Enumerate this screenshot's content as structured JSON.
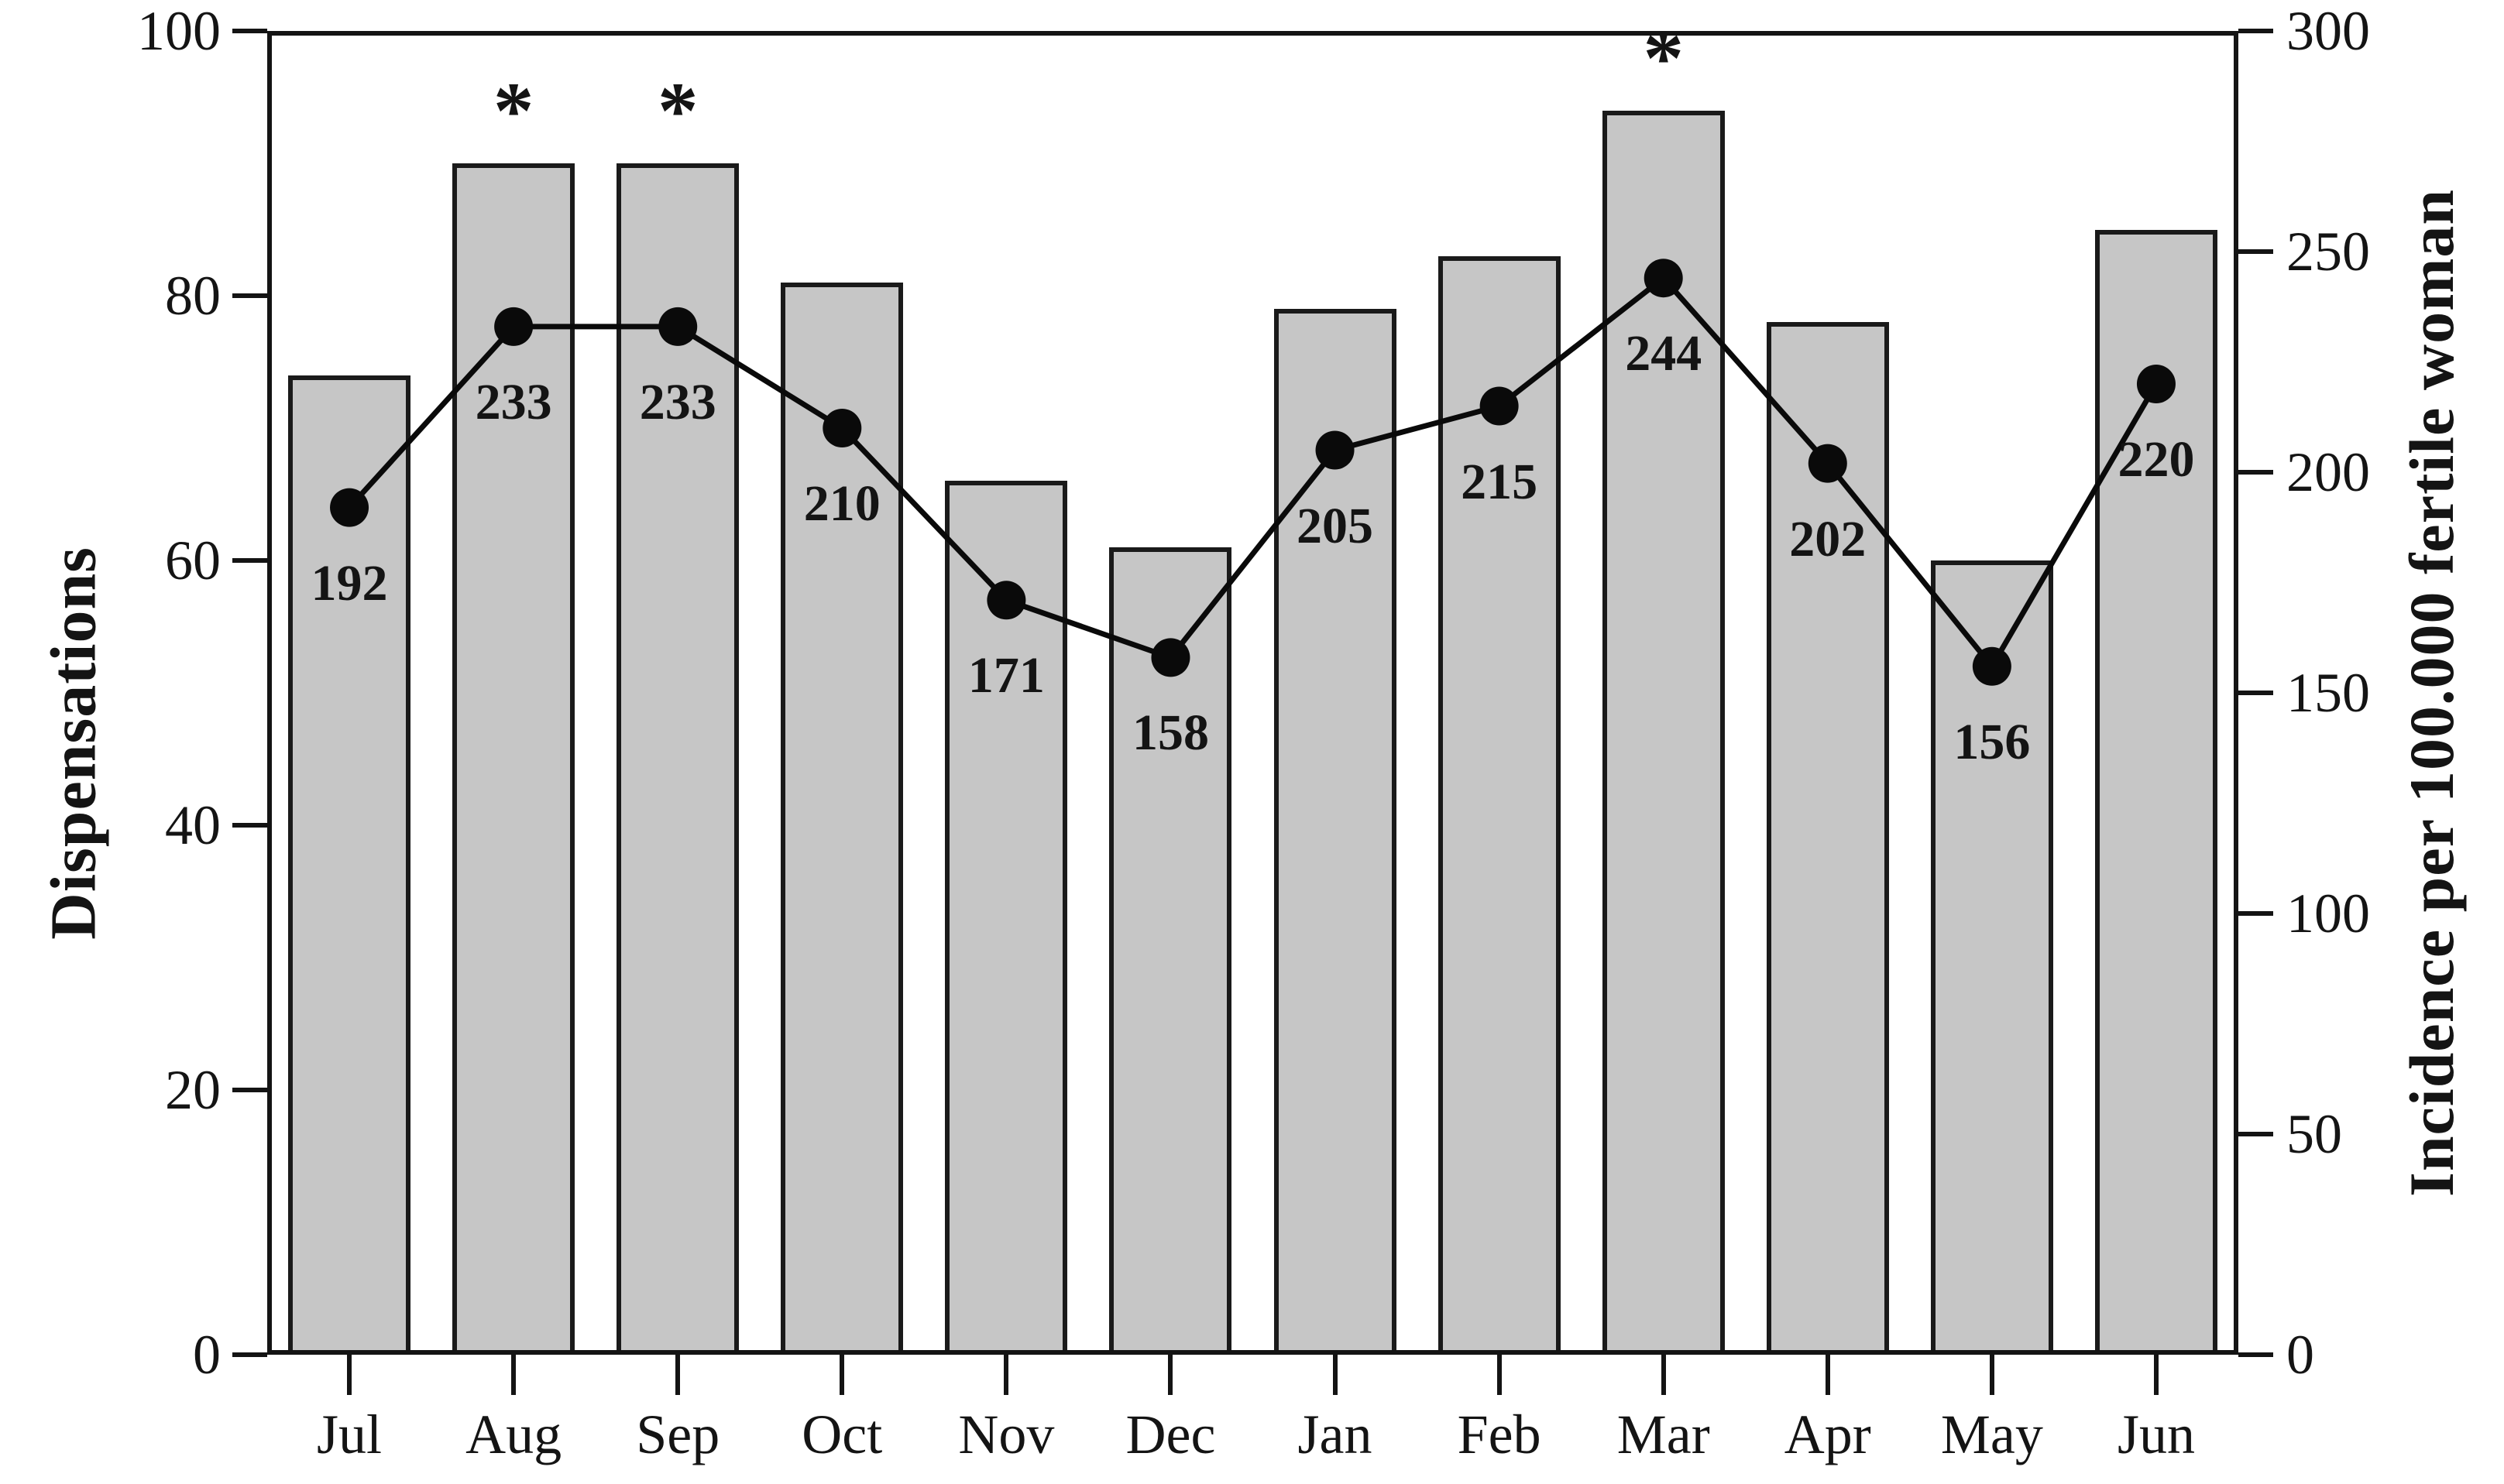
{
  "chart_data": {
    "type": "bar",
    "subtype": "bar-line-combo",
    "title": "",
    "categories": [
      "Jul",
      "Aug",
      "Sep",
      "Oct",
      "Nov",
      "Dec",
      "Jan",
      "Feb",
      "Mar",
      "Apr",
      "May",
      "Jun"
    ],
    "series": [
      {
        "name": "Dispensations",
        "type": "bar",
        "axis": "left",
        "values": [
          74,
          90,
          90,
          81,
          66,
          61,
          79,
          83,
          94,
          78,
          60,
          85
        ]
      },
      {
        "name": "Incidence per 100.000 fertile woman",
        "type": "line",
        "axis": "right",
        "values": [
          192,
          233,
          233,
          210,
          171,
          158,
          205,
          215,
          244,
          202,
          156,
          220
        ]
      }
    ],
    "significance": {
      "marker": "*",
      "months": [
        "Aug",
        "Sep",
        "Mar"
      ]
    },
    "left_axis": {
      "label": "Dispensations",
      "range": [
        0,
        100
      ],
      "ticks": [
        0,
        20,
        40,
        60,
        80,
        100
      ]
    },
    "right_axis": {
      "label": "Incidence per 100.000 fertile woman",
      "range": [
        0,
        300
      ],
      "ticks": [
        0,
        50,
        100,
        150,
        200,
        250,
        300
      ]
    },
    "legend": "none",
    "grid": "off",
    "colors": {
      "background": "#ffffff",
      "bar_fill": "#c6c6c6",
      "bar_border": "#1a1a1a",
      "axis": "#141414",
      "line": "#0a0a0a",
      "marker": "#0a0a0a",
      "text": "#141414"
    }
  }
}
